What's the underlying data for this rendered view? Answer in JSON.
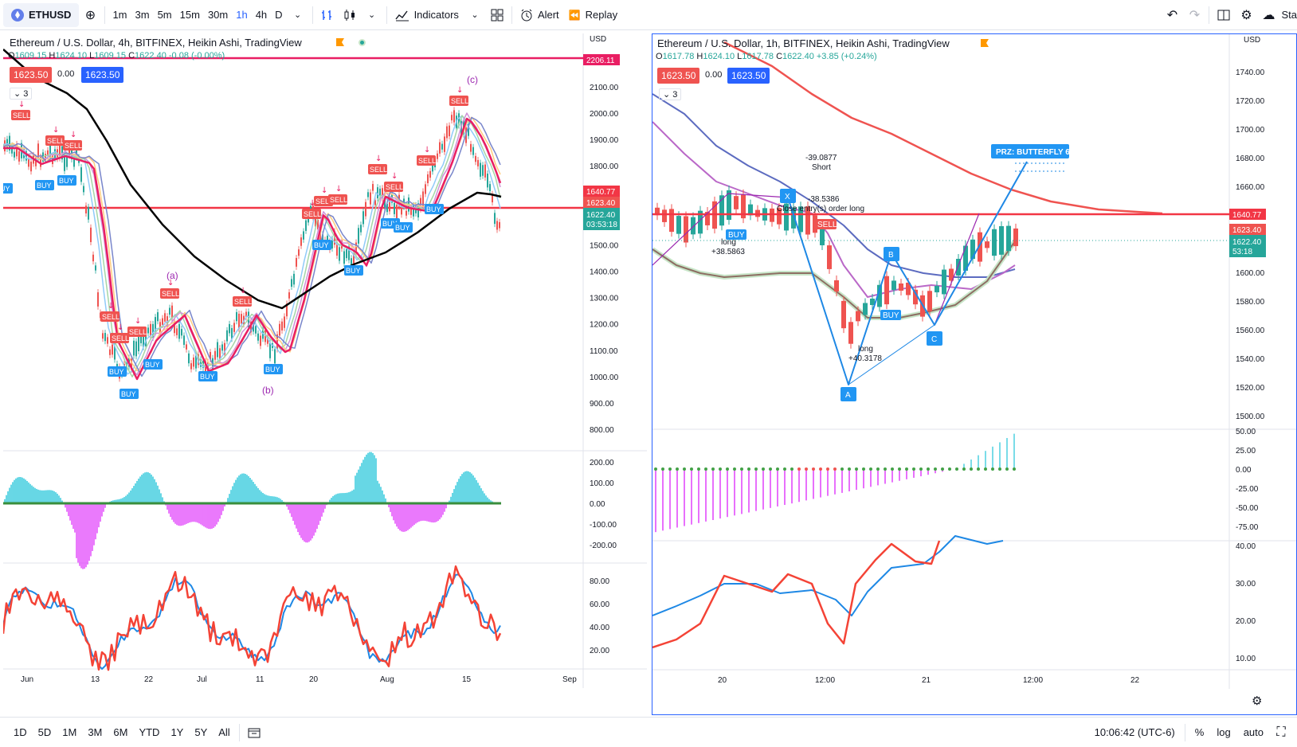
{
  "toolbar": {
    "symbol": "ETHUSD",
    "intervals": [
      "1m",
      "3m",
      "5m",
      "15m",
      "30m",
      "1h",
      "4h",
      "D"
    ],
    "active_interval": "1h",
    "indicators_label": "Indicators",
    "alert_label": "Alert",
    "replay_label": "Replay",
    "right_cut_label": "Sta"
  },
  "left_chart": {
    "title": "Ethereum / U.S. Dollar, 4h, BITFINEX, Heikin Ashi, TradingView",
    "ohlc": {
      "o": "1609.15",
      "h": "1624.10",
      "l": "1609.15",
      "c": "1622.40",
      "chg": "-0.08 (-0.00%)"
    },
    "bid": "1623.50",
    "spread": "0.00",
    "ask": "1623.50",
    "collapse_count": "3",
    "currency": "USD",
    "price_axis": [
      "2100.00",
      "2000.00",
      "1900.00",
      "1800.00",
      "1700.00",
      "1600.00",
      "1500.00",
      "1400.00",
      "1300.00",
      "1200.00",
      "1100.00",
      "1000.00",
      "900.00",
      "800.00"
    ],
    "tags": {
      "top": "2206.11",
      "red": "1640.77",
      "mid": "1623.40",
      "cur": "1622.40",
      "timer": "03:53:18"
    },
    "osc_axis": [
      "200.00",
      "100.00",
      "0.00",
      "-100.00",
      "-200.00"
    ],
    "rsi_axis": [
      "80.00",
      "60.00",
      "40.00",
      "20.00"
    ],
    "time_axis": [
      "Jun",
      "13",
      "22",
      "Jul",
      "11",
      "20",
      "Aug",
      "15",
      "Sep"
    ],
    "wave_labels": {
      "a": "(a)",
      "b": "(b)",
      "c": "(c)"
    },
    "sell": "SELL",
    "buy": "BUY"
  },
  "right_chart": {
    "title": "Ethereum / U.S. Dollar, 1h, BITFINEX, Heikin Ashi, TradingView",
    "ohlc": {
      "o": "1617.78",
      "h": "1624.10",
      "l": "1617.78",
      "c": "1622.40",
      "chg": "+3.85 (+0.24%)"
    },
    "bid": "1623.50",
    "spread": "0.00",
    "ask": "1623.50",
    "collapse_count": "3",
    "currency": "USD",
    "price_axis": [
      "1740.00",
      "1720.00",
      "1700.00",
      "1680.00",
      "1660.00",
      "1640.00",
      "1620.00",
      "1600.00",
      "1580.00",
      "1560.00",
      "1540.00",
      "1520.00",
      "1500.00"
    ],
    "tags": {
      "red": "1640.77",
      "mid": "1623.40",
      "cur": "1622.40",
      "timer": "53:18"
    },
    "osc_axis": [
      "50.00",
      "25.00",
      "0.00",
      "-25.00",
      "-50.00",
      "-75.00"
    ],
    "rsi_axis": [
      "40.00",
      "30.00",
      "20.00",
      "10.00"
    ],
    "time_axis": [
      "20",
      "12:00",
      "21",
      "12:00",
      "22"
    ],
    "annotations": {
      "short_val": "-39.0877",
      "short_lbl": "Short",
      "x_lbl": "X",
      "x_val": "-38.5386",
      "close_entry": "Close entry(s) order long",
      "long1_lbl": "long",
      "long1_val": "+38.5863",
      "long2_lbl": "long",
      "long2_val": "+40.3178",
      "prz": "PRZ: BUTTERFLY 6",
      "A": "A",
      "B": "B",
      "C": "C"
    },
    "sell": "SELL",
    "buy": "BUY"
  },
  "bottombar": {
    "ranges": [
      "1D",
      "5D",
      "1M",
      "3M",
      "6M",
      "YTD",
      "1Y",
      "5Y",
      "All"
    ],
    "clock": "10:06:42 (UTC-6)",
    "percent": "%",
    "log": "log",
    "auto": "auto"
  },
  "colors": {
    "accent": "#2962ff",
    "bull": "#26a69a",
    "bear": "#ef5350",
    "redline": "#f23645",
    "magenta": "#e91e63"
  }
}
